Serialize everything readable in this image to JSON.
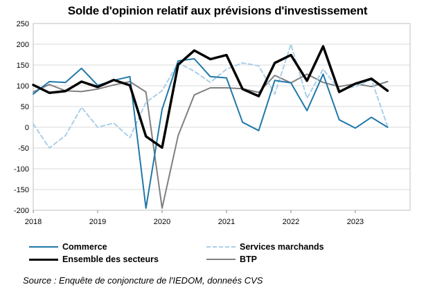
{
  "chart_data": {
    "type": "line",
    "title": "Solde d'opinion relatif aux prévisions d'investissement",
    "xlabel": "",
    "ylabel": "",
    "ylim": [
      -200,
      250
    ],
    "yticks": [
      250,
      200,
      150,
      100,
      50,
      0,
      -50,
      -100,
      -150,
      -200
    ],
    "xlim": [
      2018.0,
      2023.85
    ],
    "xticks": [
      "2018",
      "2019",
      "2020",
      "2021",
      "2022",
      "2023"
    ],
    "grid": true,
    "legend_position": "bottom",
    "x": [
      2018.0,
      2018.25,
      2018.5,
      2018.75,
      2019.0,
      2019.25,
      2019.5,
      2019.75,
      2020.0,
      2020.25,
      2020.5,
      2020.75,
      2021.0,
      2021.25,
      2021.5,
      2021.75,
      2022.0,
      2022.25,
      2022.5,
      2022.75,
      2023.0,
      2023.25,
      2023.5
    ],
    "series": [
      {
        "name": "Commerce",
        "color": "#1f78a8",
        "dash": "solid",
        "width": 2,
        "values": [
          80,
          110,
          108,
          142,
          101,
          113,
          122,
          -195,
          43,
          160,
          165,
          122,
          119,
          12,
          -8,
          113,
          107,
          40,
          128,
          18,
          -2,
          24,
          0
        ]
      },
      {
        "name": "Services marchands",
        "color": "#a9cfe8",
        "dash": "dashed",
        "width": 2,
        "values": [
          8,
          -50,
          -20,
          48,
          0,
          10,
          -25,
          60,
          88,
          155,
          135,
          108,
          140,
          155,
          148,
          80,
          200,
          70,
          140,
          90,
          98,
          115,
          2
        ]
      },
      {
        "name": "Ensemble des secteurs",
        "color": "#000000",
        "dash": "solid",
        "width": 3.5,
        "values": [
          102,
          83,
          87,
          110,
          97,
          114,
          101,
          -22,
          -49,
          151,
          185,
          164,
          174,
          92,
          75,
          155,
          174,
          112,
          195,
          85,
          105,
          117,
          88
        ]
      },
      {
        "name": "BTP",
        "color": "#7f7f7f",
        "dash": "solid",
        "width": 2,
        "values": [
          85,
          103,
          88,
          86,
          92,
          102,
          110,
          85,
          -195,
          -20,
          78,
          95,
          95,
          93,
          84,
          125,
          107,
          128,
          108,
          98,
          105,
          98,
          110
        ]
      }
    ]
  },
  "source": "Source : Enquête de conjoncture de l'IEDOM, donneés CVS"
}
